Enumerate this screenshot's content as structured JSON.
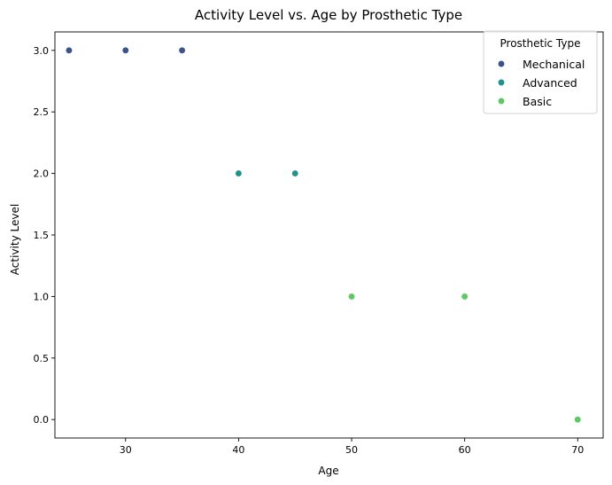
{
  "chart_data": {
    "type": "scatter",
    "title": "Activity Level vs. Age by Prosthetic Type",
    "xlabel": "Age",
    "ylabel": "Activity Level",
    "xlim": [
      23.75,
      72.25
    ],
    "ylim": [
      -0.15,
      3.15
    ],
    "xticks": [
      30,
      40,
      50,
      60,
      70
    ],
    "xtick_labels": [
      "30",
      "40",
      "50",
      "60",
      "70"
    ],
    "yticks": [
      0.0,
      0.5,
      1.0,
      1.5,
      2.0,
      2.5,
      3.0
    ],
    "ytick_labels": [
      "0.0",
      "0.5",
      "1.0",
      "1.5",
      "2.0",
      "2.5",
      "3.0"
    ],
    "grid": false,
    "legend": {
      "title": "Prosthetic Type",
      "placement": "top-right"
    },
    "series": [
      {
        "name": "Mechanical",
        "color": "#3b528b",
        "points": [
          [
            25,
            3
          ],
          [
            30,
            3
          ],
          [
            35,
            3
          ]
        ]
      },
      {
        "name": "Advanced",
        "color": "#21918c",
        "points": [
          [
            40,
            2
          ],
          [
            45,
            2
          ]
        ]
      },
      {
        "name": "Basic",
        "color": "#5ec962",
        "points": [
          [
            50,
            1
          ],
          [
            60,
            1
          ],
          [
            70,
            0
          ]
        ]
      }
    ]
  }
}
